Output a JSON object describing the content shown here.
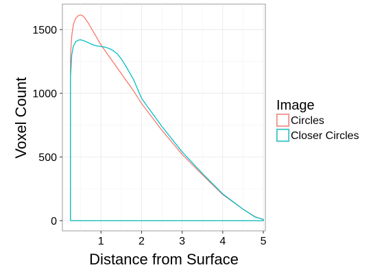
{
  "chart_data": {
    "type": "line",
    "title": "",
    "xlabel": "Distance from Surface",
    "ylabel": "Voxel Count",
    "xlim": [
      0.05,
      5.05
    ],
    "ylim": [
      -80,
      1700
    ],
    "x_ticks": [
      1,
      2,
      3,
      4,
      5
    ],
    "x_tick_labels": [
      "1",
      "2",
      "3",
      "4",
      "5"
    ],
    "y_ticks": [
      0,
      500,
      1000,
      1500
    ],
    "y_tick_labels": [
      "0",
      "500",
      "1000",
      "1500"
    ],
    "grid": true,
    "legend_position": "right",
    "legend_title": "Image",
    "series": [
      {
        "name": "Circles",
        "color": "#F8766D",
        "x": [
          0.25,
          0.25,
          0.28,
          0.32,
          0.38,
          0.45,
          0.5,
          0.55,
          0.6,
          0.7,
          0.8,
          0.9,
          1.0,
          1.2,
          1.4,
          1.6,
          1.8,
          2.0,
          2.5,
          3.0,
          3.5,
          4.0,
          4.5,
          4.8,
          5.0,
          5.0,
          4.0,
          3.0,
          2.0,
          1.0,
          0.25
        ],
        "y": [
          0,
          1300,
          1450,
          1540,
          1590,
          1612,
          1615,
          1608,
          1592,
          1545,
          1490,
          1435,
          1380,
          1290,
          1200,
          1110,
          1020,
          920,
          710,
          520,
          360,
          205,
          90,
          30,
          10,
          0,
          0,
          0,
          0,
          0,
          0
        ]
      },
      {
        "name": "Closer Circles",
        "color": "#00BFC4",
        "x": [
          0.25,
          0.25,
          0.28,
          0.32,
          0.38,
          0.45,
          0.5,
          0.6,
          0.7,
          0.8,
          0.9,
          1.0,
          1.1,
          1.2,
          1.3,
          1.4,
          1.5,
          1.6,
          1.8,
          2.0,
          2.5,
          3.0,
          3.5,
          4.0,
          4.5,
          4.8,
          5.0,
          5.0,
          4.0,
          3.0,
          2.0,
          1.0,
          0.25
        ],
        "y": [
          0,
          1130,
          1300,
          1370,
          1405,
          1418,
          1420,
          1410,
          1395,
          1380,
          1372,
          1368,
          1362,
          1352,
          1335,
          1310,
          1270,
          1220,
          1110,
          960,
          740,
          540,
          370,
          210,
          90,
          28,
          10,
          0,
          0,
          0,
          0,
          0,
          0
        ]
      }
    ]
  }
}
